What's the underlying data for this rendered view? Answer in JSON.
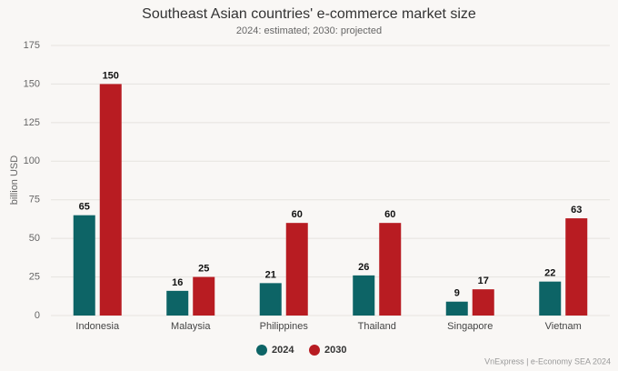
{
  "chart_data": {
    "type": "bar",
    "title": "Southeast Asian countries' e-commerce market size",
    "subtitle": "2024: estimated; 2030: projected",
    "y_label": "billion USD",
    "source": "VnExpress | e-Economy SEA 2024",
    "categories": [
      "Indonesia",
      "Malaysia",
      "Philippines",
      "Thailand",
      "Singapore",
      "Vietnam"
    ],
    "series": [
      {
        "name": "2024",
        "color": "#0d6466",
        "values": [
          65,
          16,
          21,
          26,
          9,
          22
        ]
      },
      {
        "name": "2030",
        "color": "#b81c22",
        "values": [
          150,
          25,
          60,
          60,
          17,
          63
        ]
      }
    ],
    "ylim": [
      0,
      175
    ],
    "yticks": [
      0,
      25,
      50,
      75,
      100,
      125,
      150,
      175
    ],
    "grid": true,
    "legend": "bottom"
  }
}
